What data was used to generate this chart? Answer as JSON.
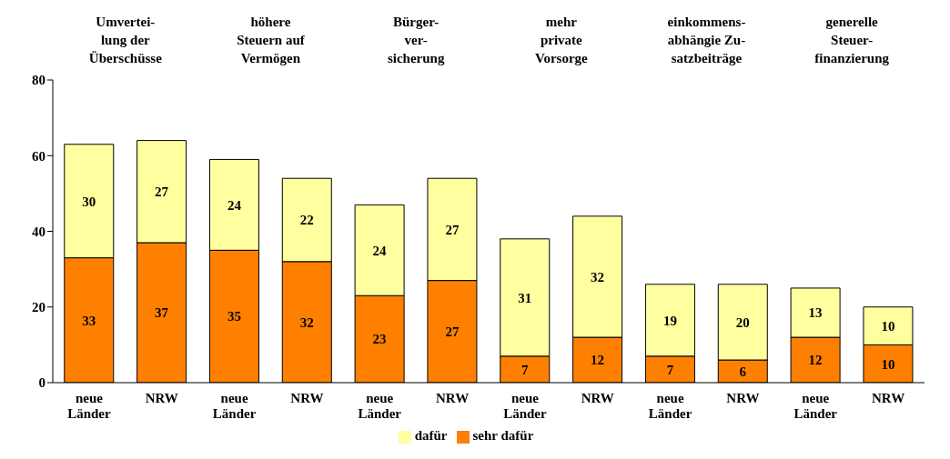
{
  "chart_data": {
    "type": "bar",
    "stacked": true,
    "categories": [
      "neue Länder",
      "NRW",
      "neue Länder",
      "NRW",
      "neue Länder",
      "NRW",
      "neue Länder",
      "NRW",
      "neue Länder",
      "NRW",
      "neue Länder",
      "NRW"
    ],
    "series": [
      {
        "name": "sehr dafür",
        "color": "#ff8000",
        "values": [
          33,
          37,
          35,
          32,
          23,
          27,
          7,
          12,
          7,
          6,
          12,
          10
        ]
      },
      {
        "name": "dafür",
        "color": "#ffffa0",
        "values": [
          30,
          27,
          24,
          22,
          24,
          27,
          31,
          32,
          19,
          20,
          13,
          10
        ]
      }
    ],
    "annotations": [
      "Umvertei-\nlung der\nÜberschüsse",
      "höhere\nSteuern auf\nVermögen",
      "Bürger-\nver-\nsicherung",
      "mehr\nprivate\nVorsorge",
      "einkommens-\nabhängie Zu-\nsatzbeiträge",
      "generelle\nSteuer-\nfinanzierung"
    ],
    "ylim": [
      0,
      80
    ],
    "yticks": [
      0,
      20,
      40,
      60,
      80
    ],
    "data_labels": true,
    "legend": "bottom",
    "grid": false
  }
}
